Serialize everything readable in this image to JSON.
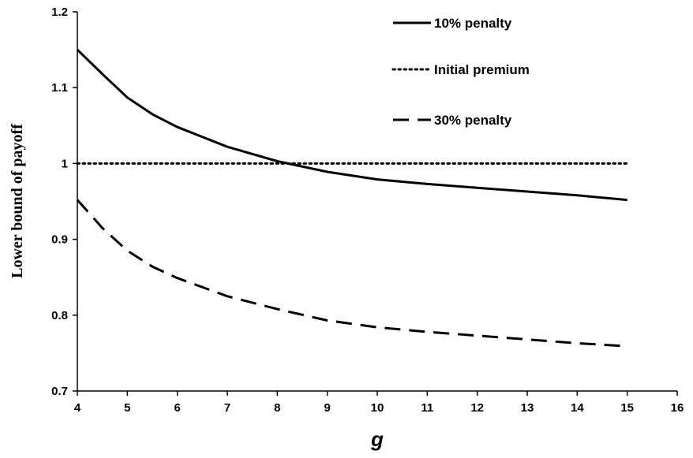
{
  "chart_data": {
    "type": "line",
    "title": "",
    "xlabel": "g",
    "ylabel": "Lower bound of payoff",
    "xlim": [
      4,
      16
    ],
    "ylim": [
      0.7,
      1.2
    ],
    "xticks": [
      "4",
      "5",
      "6",
      "7",
      "8",
      "9",
      "10",
      "11",
      "12",
      "13",
      "14",
      "15",
      "16"
    ],
    "yticks": [
      "0.7",
      "0.8",
      "0.9",
      "1",
      "1.1",
      "1.2"
    ],
    "grid": false,
    "legend_position": "top-right",
    "series": [
      {
        "name": "10% penalty",
        "style": "solid",
        "color": "#000000",
        "x": [
          4,
          4.5,
          5,
          5.5,
          6,
          7,
          8,
          9,
          10,
          11,
          12,
          13,
          14,
          15
        ],
        "y": [
          1.15,
          1.118,
          1.087,
          1.065,
          1.048,
          1.022,
          1.003,
          0.989,
          0.979,
          0.973,
          0.968,
          0.963,
          0.958,
          0.952
        ]
      },
      {
        "name": "Initial premium",
        "style": "dotted",
        "color": "#000000",
        "x": [
          4,
          15
        ],
        "y": [
          1.0,
          1.0
        ]
      },
      {
        "name": "30% penalty",
        "style": "dashed",
        "color": "#000000",
        "x": [
          4,
          4.5,
          5,
          5.5,
          6,
          7,
          8,
          9,
          10,
          11,
          12,
          13,
          14,
          15
        ],
        "y": [
          0.952,
          0.915,
          0.885,
          0.864,
          0.849,
          0.825,
          0.808,
          0.793,
          0.784,
          0.778,
          0.773,
          0.768,
          0.763,
          0.759
        ]
      }
    ]
  }
}
